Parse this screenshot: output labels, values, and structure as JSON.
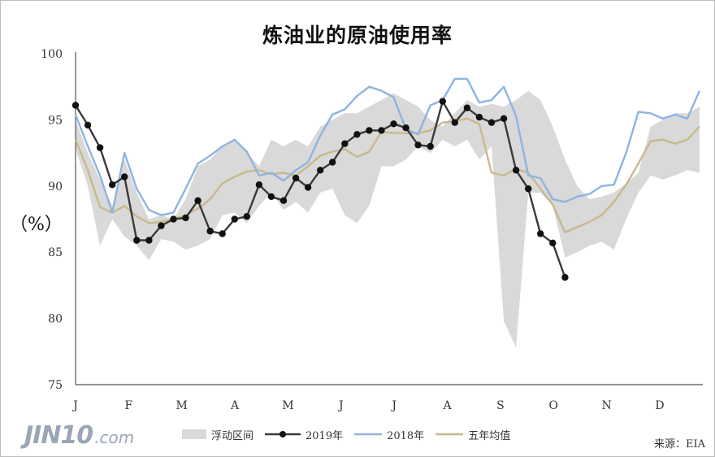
{
  "chart_data": {
    "type": "line",
    "title": "炼油业的原油使用率",
    "ylabel": "（%）",
    "ylim": [
      75,
      100
    ],
    "y_ticks": [
      75,
      80,
      85,
      90,
      95,
      100
    ],
    "x_ticks": [
      "J",
      "F",
      "M",
      "A",
      "M",
      "J",
      "J",
      "A",
      "S",
      "O",
      "N",
      "D"
    ],
    "weeks": 52,
    "band": {
      "name": "浮动区间",
      "color": "#d9d9d9",
      "upper": [
        95.0,
        92.5,
        90.5,
        88.5,
        92.0,
        89.5,
        87.5,
        87.8,
        87.5,
        89.0,
        91.5,
        92.0,
        93.0,
        93.5,
        92.5,
        91.5,
        93.5,
        93.0,
        93.5,
        93.0,
        94.5,
        95.0,
        95.5,
        95.5,
        96.0,
        96.5,
        97.0,
        96.5,
        96.0,
        95.0,
        94.5,
        95.5,
        96.5,
        96.0,
        96.2,
        96.0,
        96.5,
        97.2,
        96.5,
        94.5,
        92.0,
        90.0,
        89.0,
        89.2,
        89.5,
        90.2,
        91.0,
        94.5,
        95.0,
        95.5,
        95.5,
        96.0
      ],
      "lower": [
        92.8,
        90.0,
        85.5,
        87.5,
        86.2,
        85.5,
        84.4,
        86.0,
        85.8,
        85.2,
        85.5,
        86.0,
        87.8,
        88.0,
        87.2,
        88.5,
        89.5,
        88.2,
        88.8,
        88.0,
        89.5,
        89.8,
        87.8,
        87.2,
        88.5,
        91.5,
        91.5,
        92.0,
        93.0,
        92.5,
        93.5,
        93.0,
        93.5,
        92.0,
        93.0,
        79.8,
        77.8,
        89.5,
        89.5,
        88.5,
        84.6,
        85.0,
        85.5,
        85.8,
        85.2,
        87.5,
        89.5,
        90.8,
        90.5,
        90.8,
        91.2,
        91.0
      ]
    },
    "series": [
      {
        "name": "2019年",
        "color": "#3a3a3a",
        "values": [
          96.1,
          94.6,
          92.9,
          90.1,
          90.7,
          85.9,
          85.9,
          87.0,
          87.5,
          87.6,
          88.9,
          86.6,
          86.4,
          87.5,
          87.7,
          90.1,
          89.2,
          88.9,
          90.6,
          89.9,
          91.2,
          91.8,
          93.2,
          93.9,
          94.2,
          94.2,
          94.7,
          94.4,
          93.1,
          93.0,
          96.4,
          94.8,
          95.9,
          95.2,
          94.8,
          95.1,
          91.2,
          89.8,
          86.4,
          85.7,
          83.1
        ]
      },
      {
        "name": "2018年",
        "color": "#8db4e2",
        "values": [
          95.4,
          93.0,
          90.8,
          88.0,
          92.5,
          89.8,
          88.2,
          87.8,
          88.0,
          89.8,
          91.7,
          92.3,
          93.0,
          93.5,
          92.6,
          90.8,
          91.0,
          90.4,
          91.2,
          91.8,
          93.8,
          95.4,
          95.8,
          96.8,
          97.5,
          97.2,
          96.7,
          94.3,
          93.9,
          96.1,
          96.5,
          98.1,
          98.1,
          96.3,
          96.5,
          97.5,
          95.3,
          90.8,
          90.6,
          89.0,
          88.8,
          89.2,
          89.4,
          90.0,
          90.1,
          92.5,
          95.6,
          95.5,
          95.1,
          95.4,
          95.1,
          97.2
        ]
      },
      {
        "name": "五年均值",
        "color": "#c8b98c",
        "values": [
          93.5,
          91.2,
          88.4,
          88.0,
          88.5,
          87.7,
          87.2,
          87.3,
          87.5,
          87.8,
          88.3,
          89.0,
          90.2,
          90.7,
          91.1,
          91.2,
          90.9,
          91.0,
          90.8,
          91.5,
          92.3,
          92.6,
          92.8,
          92.2,
          92.6,
          94.1,
          94.0,
          94.0,
          94.0,
          94.2,
          94.8,
          94.9,
          95.1,
          94.7,
          91.0,
          90.8,
          91.3,
          91.0,
          89.8,
          88.6,
          86.5,
          86.9,
          87.3,
          87.8,
          88.8,
          90.1,
          91.7,
          93.4,
          93.5,
          93.2,
          93.5,
          94.5
        ]
      }
    ],
    "legend": [
      "浮动区间",
      "2019年",
      "2018年",
      "五年均值"
    ],
    "legend_position": "bottom",
    "source": "来源：EIA",
    "watermark": "JIN10.com"
  }
}
